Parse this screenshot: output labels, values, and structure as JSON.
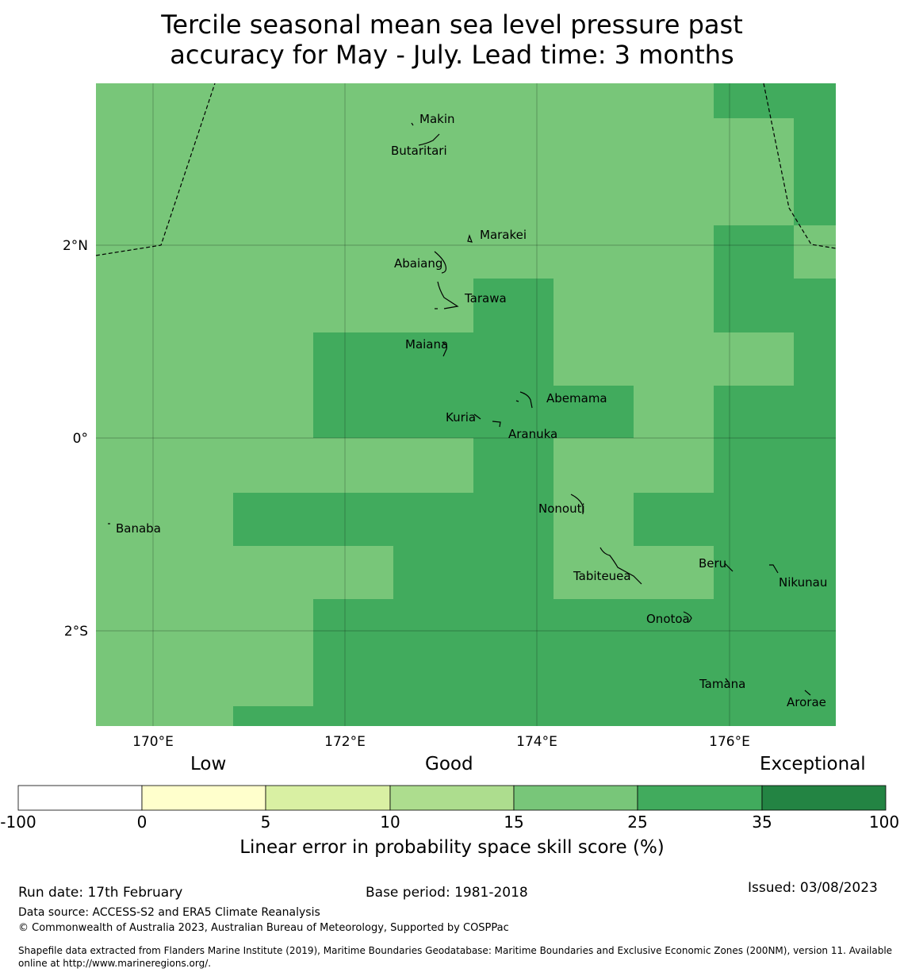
{
  "title": {
    "line1": "Tercile seasonal mean sea level pressure past",
    "line2": "accuracy for May - July. Lead time: 3 months"
  },
  "map": {
    "lat_labels": [
      "2°N",
      "0°",
      "2°S"
    ],
    "lon_labels": [
      "170°E",
      "172°E",
      "174°E",
      "176°E"
    ],
    "colors": {
      "good_15_25": "#78c679",
      "good_25_35": "#41ab5d"
    },
    "places": [
      {
        "name": "Makin"
      },
      {
        "name": "Butaritari"
      },
      {
        "name": "Marakei"
      },
      {
        "name": "Abaiang"
      },
      {
        "name": "Tarawa"
      },
      {
        "name": "Maiana"
      },
      {
        "name": "Abemama"
      },
      {
        "name": "Kuria"
      },
      {
        "name": "Aranuka"
      },
      {
        "name": "Nonouti"
      },
      {
        "name": "Banaba"
      },
      {
        "name": "Beru"
      },
      {
        "name": "Tabiteuea"
      },
      {
        "name": "Nikunau"
      },
      {
        "name": "Onotoa"
      },
      {
        "name": "Tamana"
      },
      {
        "name": "Arorae"
      }
    ]
  },
  "legend": {
    "categories": [
      "Low",
      "Good",
      "Exceptional"
    ],
    "ticks": [
      "-100",
      "0",
      "5",
      "10",
      "15",
      "25",
      "35",
      "100"
    ],
    "colors": [
      "#ffffff",
      "#ffffcc",
      "#d9f0a3",
      "#addd8e",
      "#78c679",
      "#41ab5d",
      "#238443"
    ],
    "title": "Linear error in probability space skill score (%)"
  },
  "footer": {
    "run_date": "Run date: 17th February",
    "base_period": "Base period: 1981-2018",
    "issued": "Issued: 03/08/2023",
    "data_source": "Data source: ACCESS-S2 and ERA5 Climate Reanalysis",
    "copyright": "© Commonwealth of Australia 2023, Australian Bureau of Meteorology, Supported by COSPPac",
    "shapefile_line1": "Shapefile data extracted from Flanders Marine Institute (2019), Maritime Boundaries Geodatabase: Maritime Boundaries and Exclusive Economic Zones (200NM), version 11. Available",
    "shapefile_line2": "online at http://www.marineregions.org/."
  }
}
